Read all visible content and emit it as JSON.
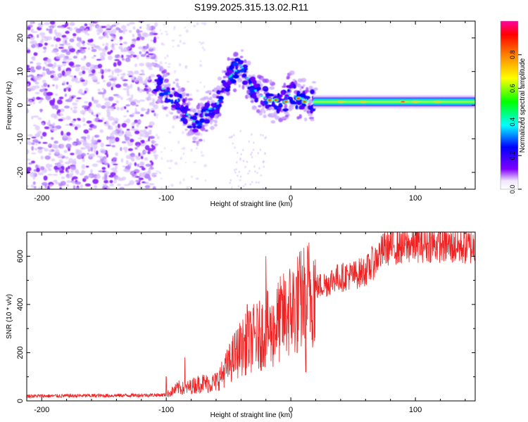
{
  "title": "S199.2025.315.13.02.R11",
  "colors": {
    "scatter": "#8000ff",
    "snr_line": "#ee2222",
    "axis": "#000000"
  },
  "chart_data": [
    {
      "id": "spectrogram",
      "type": "heatmap",
      "title": "S199.2025.315.13.02.R11",
      "xlabel": "Height of straight line (km)",
      "ylabel": "Frequency (Hz)",
      "xlim": [
        -212,
        148
      ],
      "ylim": [
        -25,
        25
      ],
      "xticks": [
        -200,
        -100,
        0,
        100
      ],
      "yticks": [
        -20,
        -10,
        0,
        10,
        20
      ],
      "colorbar": {
        "label": "Normalized spectral amplitude",
        "range": [
          0,
          1
        ],
        "ticks": [
          0.0,
          0.2,
          0.4,
          0.6,
          0.8
        ]
      },
      "features": [
        {
          "name": "broadband noise",
          "x_range": [
            -212,
            -108
          ],
          "freq_range": [
            -25,
            25
          ],
          "amplitude": 0.05
        },
        {
          "name": "wandering signal",
          "x_range": [
            -108,
            20
          ],
          "freq_center_range": [
            -7,
            13
          ],
          "amplitude": 0.25
        },
        {
          "name": "steady band",
          "x_range": [
            20,
            148
          ],
          "freq_center": 1,
          "freq_halfwidth": 2,
          "amplitude": 0.45
        }
      ]
    },
    {
      "id": "snr",
      "type": "line",
      "xlabel": "Height of straight line (km)",
      "ylabel": "SNR (10 * v/v)",
      "xlim": [
        -212,
        148
      ],
      "ylim": [
        0,
        700
      ],
      "xticks": [
        -200,
        -100,
        0,
        100
      ],
      "yticks": [
        0,
        200,
        400,
        600
      ],
      "series": [
        {
          "name": "SNR",
          "x": [
            -212,
            -150,
            -100,
            -95,
            -90,
            -85,
            -80,
            -75,
            -70,
            -65,
            -60,
            -55,
            -50,
            -45,
            -40,
            -35,
            -30,
            -25,
            -20,
            -15,
            -10,
            -5,
            0,
            5,
            10,
            15,
            20,
            25,
            30,
            35,
            40,
            45,
            50,
            55,
            60,
            65,
            70,
            75,
            80,
            90,
            100,
            110,
            120,
            130,
            140,
            148
          ],
          "y": [
            20,
            22,
            25,
            40,
            55,
            50,
            60,
            70,
            75,
            70,
            80,
            110,
            150,
            190,
            220,
            240,
            260,
            270,
            300,
            280,
            330,
            350,
            380,
            400,
            420,
            450,
            470,
            480,
            490,
            510,
            510,
            520,
            520,
            530,
            540,
            560,
            600,
            630,
            640,
            640,
            650,
            650,
            650,
            640,
            640,
            640
          ],
          "spikes": [
            {
              "x": -100,
              "y": 100
            },
            {
              "x": -85,
              "y": 180
            },
            {
              "x": -40,
              "y": 300
            },
            {
              "x": -35,
              "y": 400
            },
            {
              "x": -20,
              "y": 600
            },
            {
              "x": 5,
              "y": 200
            },
            {
              "x": 10,
              "y": 500
            },
            {
              "x": 12,
              "y": 120
            },
            {
              "x": 65,
              "y": 640
            }
          ]
        }
      ]
    }
  ]
}
